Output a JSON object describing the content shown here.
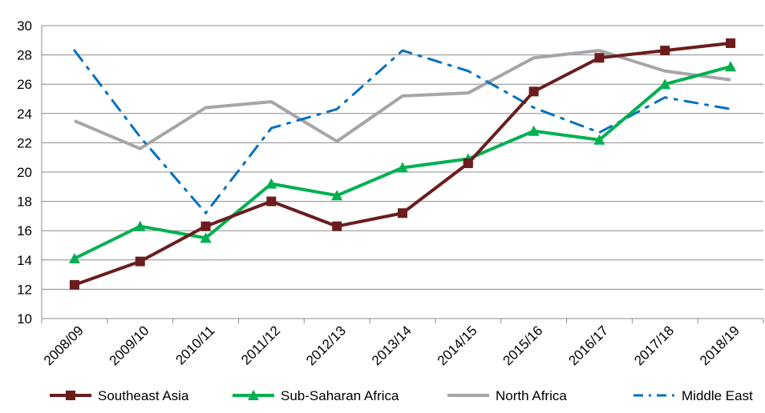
{
  "chart_data": {
    "type": "line",
    "categories": [
      "2008/09",
      "2009/10",
      "2010/11",
      "2011/12",
      "2012/13",
      "2013/14",
      "2014/15",
      "2015/16",
      "2016/17",
      "2017/18",
      "2018/19"
    ],
    "ylim": [
      10,
      30
    ],
    "yticks": [
      10,
      12,
      14,
      16,
      18,
      20,
      22,
      24,
      26,
      28,
      30
    ],
    "grid": true,
    "legend_position": "bottom",
    "series": [
      {
        "name": "Southeast Asia",
        "color": "#6b1d1d",
        "marker": "square",
        "dash": "solid",
        "values": [
          12.3,
          13.9,
          16.3,
          18.0,
          16.3,
          17.2,
          20.6,
          25.5,
          27.8,
          28.3,
          28.8
        ]
      },
      {
        "name": "Sub-Saharan Africa",
        "color": "#00b050",
        "marker": "triangle",
        "dash": "solid",
        "values": [
          14.1,
          16.3,
          15.5,
          19.2,
          18.4,
          20.3,
          20.9,
          22.8,
          22.2,
          26.0,
          27.2
        ]
      },
      {
        "name": "North Africa",
        "color": "#a6a6a6",
        "marker": "none",
        "dash": "solid",
        "values": [
          23.5,
          21.6,
          24.4,
          24.8,
          22.1,
          25.2,
          25.4,
          27.8,
          28.3,
          26.9,
          26.3
        ]
      },
      {
        "name": "Middle East",
        "color": "#0070c0",
        "marker": "none",
        "dash": "dashdot",
        "values": [
          28.3,
          22.4,
          17.2,
          23.0,
          24.3,
          28.3,
          26.9,
          24.4,
          22.7,
          25.1,
          24.3
        ]
      }
    ]
  }
}
